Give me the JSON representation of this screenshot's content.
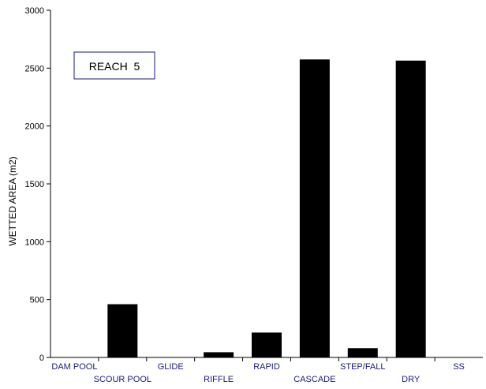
{
  "chart_data": {
    "type": "bar",
    "categories": [
      "DAM POOL",
      "SCOUR POOL",
      "GLIDE",
      "RIFFLE",
      "RAPID",
      "CASCADE",
      "STEP/FALL",
      "DRY",
      "SS"
    ],
    "values": [
      0,
      460,
      0,
      45,
      215,
      2575,
      80,
      2565,
      0
    ],
    "title": "",
    "xlabel": "",
    "ylabel": "WETTED AREA (m2)",
    "ylim": [
      0,
      3000
    ],
    "yticks": [
      0,
      500,
      1000,
      1500,
      2000,
      2500,
      3000
    ],
    "annotation": "REACH  5",
    "bar_color": "#000000",
    "category_label_color": "#1a1a7a",
    "grid": false,
    "legend": "none"
  }
}
